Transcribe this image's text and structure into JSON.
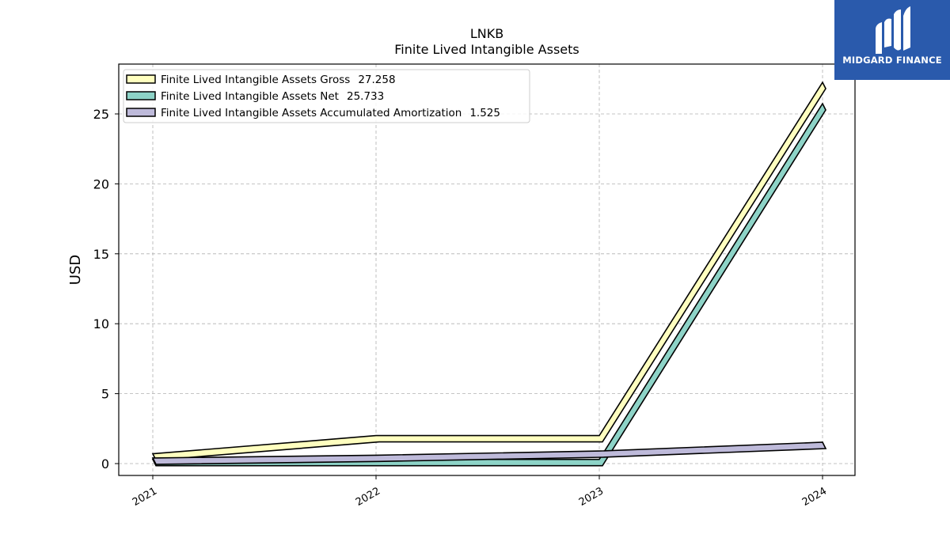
{
  "chart_data": {
    "type": "area",
    "title": "LNKB",
    "subtitle": "Finite Lived Intangible Assets",
    "xlabel": "",
    "ylabel": "USD",
    "categories": [
      "2021",
      "2022",
      "2023",
      "2024"
    ],
    "yticks": [
      "0",
      "5",
      "10",
      "15",
      "20",
      "25"
    ],
    "ylim": [
      -0.8,
      28.6
    ],
    "grid": true,
    "legend_position": "top-left",
    "series": [
      {
        "name": "Finite Lived Intangible Assets Gross",
        "label_value": "27.258",
        "values": [
          0.7,
          2.0,
          2.0,
          27.258
        ],
        "color": "#ffffbf"
      },
      {
        "name": "Finite Lived Intangible Assets Net",
        "label_value": "25.733",
        "values": [
          0.3,
          0.3,
          0.3,
          25.733
        ],
        "color": "#8dd3c7"
      },
      {
        "name": "Finite Lived Intangible Assets Accumulated Amortization",
        "label_value": "1.525",
        "values": [
          0.4,
          0.6,
          0.9,
          1.525
        ],
        "color": "#bebada"
      }
    ]
  },
  "logo": {
    "text": "MIDGARD FINANCE"
  }
}
